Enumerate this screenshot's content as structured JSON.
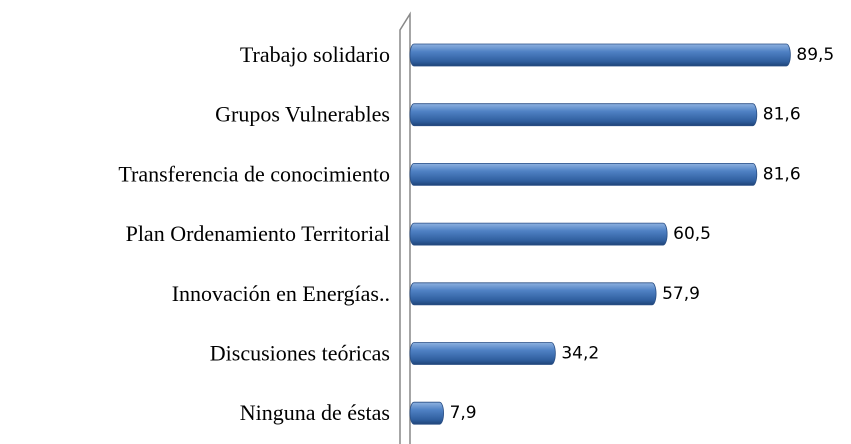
{
  "chart_data": {
    "type": "bar",
    "orientation": "horizontal",
    "categories": [
      "Trabajo solidario",
      "Grupos Vulnerables",
      "Transferencia de conocimiento",
      "Plan Ordenamiento Territorial",
      "Innovación en Energías..",
      "Discusiones teóricas",
      "Ninguna de éstas"
    ],
    "values": [
      89.5,
      81.6,
      81.6,
      60.5,
      57.9,
      34.2,
      7.9
    ],
    "value_labels": [
      "89,5",
      "81,6",
      "81,6",
      "60,5",
      "57,9",
      "34,2",
      "7,9"
    ],
    "color": "#4a7ebb",
    "xlim": [
      0,
      100
    ]
  }
}
